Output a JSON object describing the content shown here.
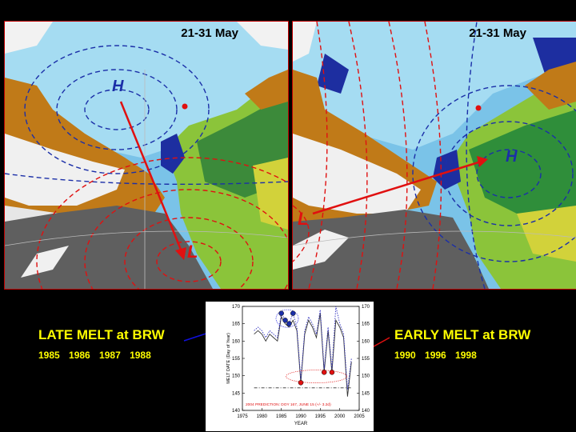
{
  "maps": [
    {
      "date": "21-31 May",
      "high": "H",
      "low": "L"
    },
    {
      "date": "21-31 May",
      "high": "H",
      "low": "L"
    }
  ],
  "late": {
    "title": "LATE MELT at BRW",
    "years": "1985   1986   1987   1988"
  },
  "early": {
    "title": "EARLY MELT at BRW",
    "years": "1990   1996   1998"
  },
  "chart_data": {
    "type": "line",
    "ylabel": "MELT DATE (Day of Year)",
    "xlabel": "YEAR",
    "annotation": "2004 PREDICTION: DOY 167, JUNE 15 (+/- 3.2d)",
    "xlim": [
      1975,
      2005
    ],
    "ylim": [
      140,
      170
    ],
    "xticks": [
      1975,
      1980,
      1985,
      1990,
      1995,
      2000,
      2005
    ],
    "yticks": [
      140,
      145,
      150,
      155,
      160,
      165,
      170
    ],
    "series": [
      {
        "style": "solid",
        "color": "#333333",
        "x": [
          1978,
          1979,
          1980,
          1981,
          1982,
          1983,
          1984,
          1985,
          1986,
          1987,
          1988,
          1989,
          1990,
          1991,
          1992,
          1993,
          1994,
          1995,
          1996,
          1997,
          1998,
          1999,
          2000,
          2001,
          2002,
          2003
        ],
        "y": [
          162,
          163,
          162,
          160,
          162,
          161,
          160,
          167,
          165,
          164,
          166,
          163,
          148,
          162,
          166,
          164,
          161,
          168,
          151,
          163,
          151,
          166,
          164,
          161,
          144,
          154
        ]
      },
      {
        "style": "dotted",
        "color": "#3030c0",
        "x": [
          1978,
          1979,
          1980,
          1981,
          1982,
          1983,
          1984,
          1985,
          1986,
          1987,
          1988,
          1989,
          1990,
          1991,
          1992,
          1993,
          1994,
          1995,
          1996,
          1997,
          1998,
          1999,
          2000,
          2001,
          2002,
          2003
        ],
        "y": [
          163,
          164,
          163,
          161,
          163,
          162,
          161,
          168,
          166,
          165,
          168,
          164,
          149,
          163,
          167,
          165,
          162,
          169,
          152,
          164,
          152,
          170,
          165,
          162,
          146,
          155
        ]
      },
      {
        "style": "dash-dot",
        "color": "#333333",
        "x": [
          1978,
          2003
        ],
        "y": [
          146.5,
          146.5
        ]
      }
    ],
    "late_points": {
      "x": [
        1985,
        1986,
        1987,
        1988
      ],
      "y": [
        168,
        166,
        165,
        168
      ]
    },
    "early_points": {
      "x": [
        1990,
        1996,
        1998
      ],
      "y": [
        148,
        151,
        151
      ]
    }
  }
}
